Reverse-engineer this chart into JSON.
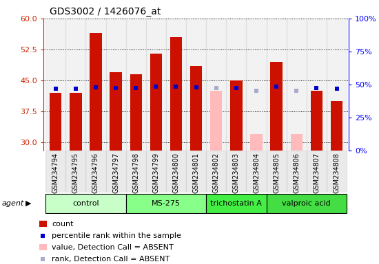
{
  "title": "GDS3002 / 1426076_at",
  "samples": [
    "GSM234794",
    "GSM234795",
    "GSM234796",
    "GSM234797",
    "GSM234798",
    "GSM234799",
    "GSM234800",
    "GSM234801",
    "GSM234802",
    "GSM234803",
    "GSM234804",
    "GSM234805",
    "GSM234806",
    "GSM234807",
    "GSM234808"
  ],
  "count_values": [
    42.0,
    42.0,
    56.5,
    47.0,
    46.5,
    51.5,
    55.5,
    48.5,
    null,
    45.0,
    null,
    49.5,
    null,
    42.5,
    40.0
  ],
  "count_absent": [
    null,
    null,
    null,
    null,
    null,
    null,
    null,
    null,
    42.5,
    null,
    32.0,
    null,
    32.0,
    null,
    null
  ],
  "rank_values": [
    47.0,
    47.0,
    48.0,
    47.5,
    47.5,
    48.5,
    48.5,
    48.0,
    null,
    47.5,
    null,
    48.5,
    null,
    47.5,
    47.0
  ],
  "rank_absent": [
    null,
    null,
    null,
    null,
    null,
    null,
    null,
    null,
    47.5,
    null,
    45.5,
    null,
    45.5,
    null,
    null
  ],
  "groups": [
    {
      "label": "control",
      "indices": [
        0,
        1,
        2,
        3
      ],
      "color": "#c8ffc8"
    },
    {
      "label": "MS-275",
      "indices": [
        4,
        5,
        6,
        7
      ],
      "color": "#88ff88"
    },
    {
      "label": "trichostatin A",
      "indices": [
        8,
        9,
        10
      ],
      "color": "#44ee44"
    },
    {
      "label": "valproic acid",
      "indices": [
        11,
        12,
        13,
        14
      ],
      "color": "#44dd44"
    }
  ],
  "bar_color_present": "#cc1100",
  "bar_color_absent": "#ffbbbb",
  "dot_color_present": "#0000cc",
  "dot_color_absent": "#aaaacc",
  "ylim_left": [
    28,
    60
  ],
  "ylim_right": [
    0,
    100
  ],
  "yticks_left": [
    30,
    37.5,
    45,
    52.5,
    60
  ],
  "yticks_right": [
    0,
    25,
    50,
    75,
    100
  ],
  "background_xtick": "#cccccc",
  "dot_size": 22
}
